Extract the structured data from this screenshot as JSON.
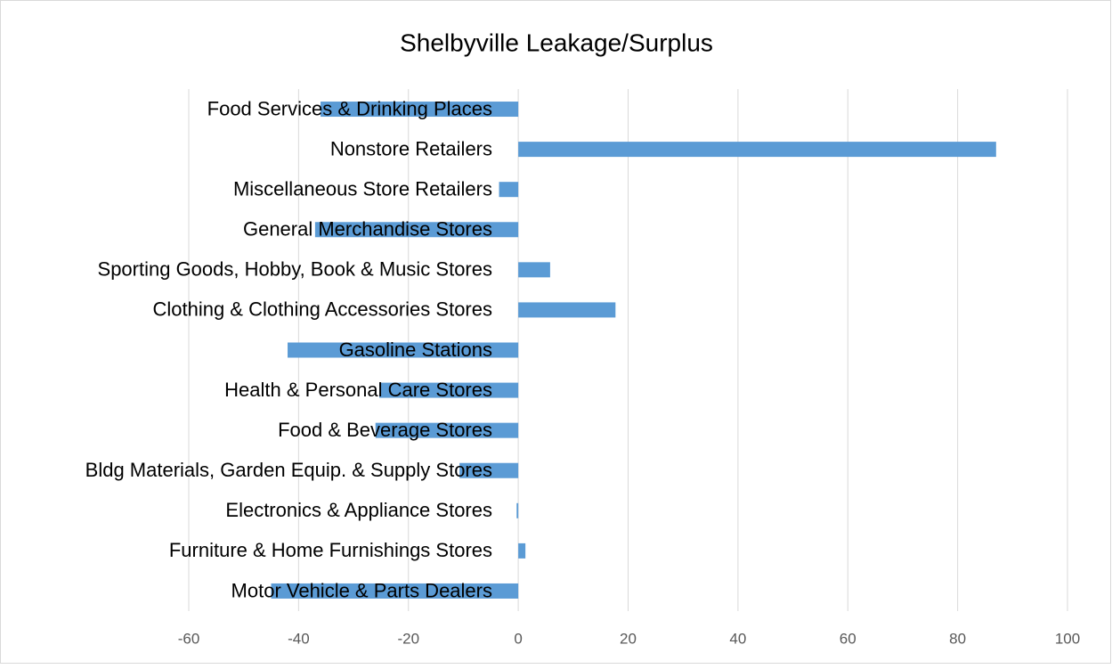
{
  "chart_data": {
    "type": "bar",
    "orientation": "horizontal",
    "title": "Shelbyville Leakage/Surplus",
    "categories": [
      "Food Services & Drinking Places",
      "Nonstore Retailers",
      "Miscellaneous Store Retailers",
      "General Merchandise Stores",
      "Sporting Goods, Hobby, Book & Music Stores",
      "Clothing & Clothing Accessories Stores",
      "Gasoline Stations",
      "Health & Personal Care Stores",
      "Food & Beverage Stores",
      "Bldg Materials, Garden Equip. & Supply Stores",
      "Electronics & Appliance Stores",
      "Furniture & Home Furnishings Stores",
      "Motor Vehicle & Parts Dealers"
    ],
    "values": [
      -36,
      87,
      -3.5,
      -37,
      5.8,
      17.7,
      -42,
      -25.3,
      -26,
      -10.7,
      -0.3,
      1.3,
      -45
    ],
    "color": "#5b9bd5",
    "xlim": [
      -60,
      100
    ],
    "xticks": [
      -60,
      -40,
      -20,
      0,
      20,
      40,
      60,
      80,
      100
    ],
    "grid": true
  }
}
